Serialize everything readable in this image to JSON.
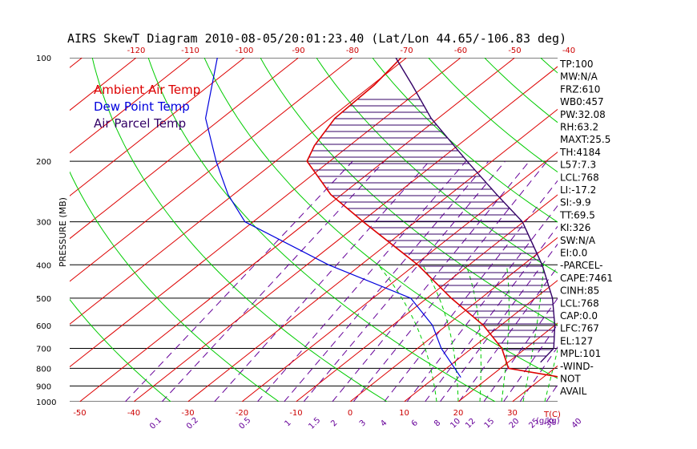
{
  "title": "AIRS SkewT Diagram 2010-08-05/20:01:23.40 (Lat/Lon 44.65/-106.83 deg)",
  "ylabel": "PRESSURE (MB)",
  "legend": [
    {
      "label": "Ambient Air Temp",
      "color": "#dd0000"
    },
    {
      "label": "Dew Point Temp",
      "color": "#0000dd"
    },
    {
      "label": "Air Parcel Temp",
      "color": "#330066"
    }
  ],
  "colors": {
    "isotherm": "#dd0000",
    "dry_adiabat": "#00cc00",
    "mixing_ratio": "#660099",
    "isobar": "#000000",
    "moist_adiabat": "#00cc00",
    "cape_hatch": "#330066"
  },
  "chart_data": {
    "type": "line",
    "title": "AIRS SkewT Diagram 2010-08-05/20:01:23.40 (Lat/Lon 44.65/-106.83 deg)",
    "ylabel": "PRESSURE (MB)",
    "xlabel_bottom": "T(C)",
    "xlabel_mixing": "(g/kg)",
    "y_scale": "log",
    "ylim": [
      1000,
      100
    ],
    "skew": "temperature lines slanted; bottom axis at 1000 mb, top axis at 100 mb",
    "pressure_ticks": [
      100,
      200,
      300,
      400,
      500,
      600,
      700,
      800,
      900,
      1000
    ],
    "temp_ticks_bottom": [
      -50,
      -40,
      -30,
      -20,
      -10,
      0,
      10,
      20,
      30
    ],
    "temp_ticks_top": [
      -120,
      -110,
      -100,
      -90,
      -80,
      -70,
      -60,
      -50,
      -40
    ],
    "mixing_ratio_labels": [
      "0.1",
      "0.2",
      "0.5",
      "1",
      "1.5",
      "2",
      "3",
      "4",
      "6",
      "8",
      "10",
      "12",
      "15",
      "20",
      "25",
      "30",
      "40"
    ],
    "series": [
      {
        "name": "Ambient Air Temp",
        "color": "#dd0000",
        "points": [
          [
            862,
            36.3
          ],
          [
            800,
            21.5
          ],
          [
            700,
            15.6
          ],
          [
            600,
            6.8
          ],
          [
            500,
            -5.5
          ],
          [
            400,
            -19.5
          ],
          [
            300,
            -39.6
          ],
          [
            250,
            -52.0
          ],
          [
            200,
            -64.2
          ],
          [
            180,
            -66.5
          ],
          [
            150,
            -69.1
          ],
          [
            120,
            -69.6
          ],
          [
            100,
            -71.0
          ]
        ]
      },
      {
        "name": "Dew Point Temp",
        "color": "#0000dd",
        "points": [
          [
            850,
            14.8
          ],
          [
            700,
            4.4
          ],
          [
            600,
            -2.6
          ],
          [
            500,
            -13.0
          ],
          [
            400,
            -36.0
          ],
          [
            300,
            -61.5
          ],
          [
            250,
            -71.0
          ],
          [
            200,
            -81.0
          ],
          [
            150,
            -93.0
          ],
          [
            100,
            -105.0
          ]
        ]
      },
      {
        "name": "Air Parcel Temp",
        "color": "#330066",
        "points": [
          [
            768,
            26.0
          ],
          [
            700,
            25.2
          ],
          [
            600,
            20.0
          ],
          [
            500,
            13.2
          ],
          [
            400,
            3.5
          ],
          [
            300,
            -10.2
          ],
          [
            250,
            -21.3
          ],
          [
            200,
            -34.6
          ],
          [
            150,
            -51.3
          ],
          [
            120,
            -62.6
          ],
          [
            100,
            -72.0
          ]
        ]
      }
    ],
    "indices": [
      "TP:100",
      "MW:N/A",
      "FRZ:610",
      "WB0:457",
      "PW:32.08",
      "RH:63.2",
      "MAXT:25.5",
      "TH:4184",
      "L57:7.3",
      "LCL:768",
      "LI:-17.2",
      "SI:-9.9",
      "TT:69.5",
      "KI:326",
      "SW:N/A",
      "EI:0.0",
      "-PARCEL-",
      "CAPE:7461",
      "CINH:85",
      "LCL:768",
      "CAP:0.0",
      "LFC:767",
      "EL:127",
      "MPL:101",
      "-WIND-",
      "NOT",
      "AVAIL"
    ]
  }
}
